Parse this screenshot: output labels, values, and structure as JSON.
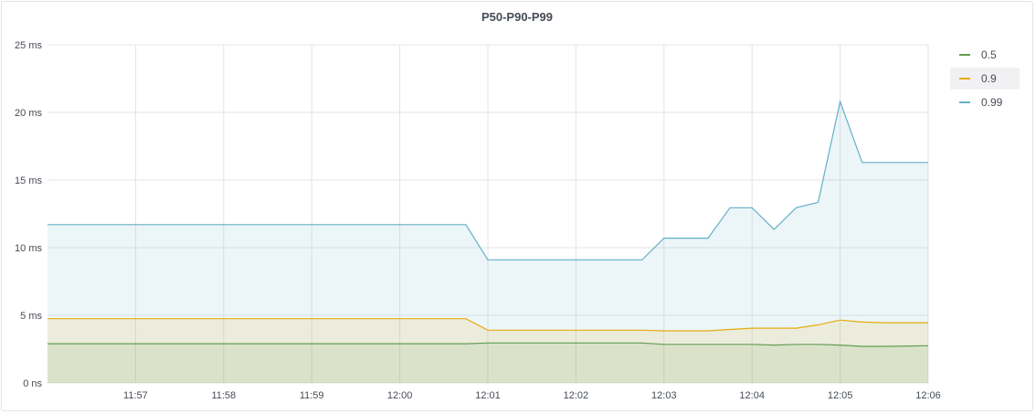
{
  "panel": {
    "title": "P50-P90-P99"
  },
  "colors": {
    "p50": "#629e51",
    "p90": "#e5ac0e",
    "p99": "#64b0c8",
    "grid": "#e4e4e4",
    "text": "#464c54"
  },
  "chart_data": {
    "type": "line",
    "title": "P50-P90-P99",
    "x_tick_labels": [
      "11:57",
      "11:58",
      "11:59",
      "12:00",
      "12:01",
      "12:02",
      "12:03",
      "12:04",
      "12:05",
      "12:06"
    ],
    "x_range_minutes": [
      -4.0,
      6.0
    ],
    "x_ticks_minutes": [
      -3,
      -2,
      -1,
      0,
      1,
      2,
      3,
      4,
      5,
      6
    ],
    "y_tick_labels": [
      "0 ns",
      "5 ms",
      "10 ms",
      "15 ms",
      "20 ms",
      "25 ms"
    ],
    "y_ticks": [
      0,
      5,
      10,
      15,
      20,
      25
    ],
    "ylim": [
      0,
      25
    ],
    "y_unit": "ms",
    "grid": true,
    "legend_position": "right",
    "fill": true,
    "series": [
      {
        "name": "0.5",
        "color_key": "p50",
        "points": [
          [
            -4.0,
            2.9
          ],
          [
            0.75,
            2.9
          ],
          [
            1.0,
            2.95
          ],
          [
            2.0,
            2.95
          ],
          [
            2.75,
            2.95
          ],
          [
            3.0,
            2.85
          ],
          [
            3.5,
            2.85
          ],
          [
            3.75,
            2.85
          ],
          [
            4.0,
            2.85
          ],
          [
            4.25,
            2.8
          ],
          [
            4.5,
            2.85
          ],
          [
            4.75,
            2.85
          ],
          [
            5.0,
            2.8
          ],
          [
            5.25,
            2.7
          ],
          [
            5.5,
            2.7
          ],
          [
            6.0,
            2.75
          ]
        ]
      },
      {
        "name": "0.9",
        "color_key": "p90",
        "points": [
          [
            -4.0,
            4.75
          ],
          [
            0.75,
            4.75
          ],
          [
            1.0,
            3.9
          ],
          [
            2.0,
            3.9
          ],
          [
            2.75,
            3.9
          ],
          [
            3.0,
            3.85
          ],
          [
            3.5,
            3.85
          ],
          [
            3.75,
            3.95
          ],
          [
            4.0,
            4.05
          ],
          [
            4.25,
            4.05
          ],
          [
            4.5,
            4.05
          ],
          [
            4.75,
            4.3
          ],
          [
            5.0,
            4.65
          ],
          [
            5.25,
            4.5
          ],
          [
            5.5,
            4.45
          ],
          [
            6.0,
            4.45
          ]
        ]
      },
      {
        "name": "0.99",
        "color_key": "p99",
        "points": [
          [
            -4.0,
            11.7
          ],
          [
            0.75,
            11.7
          ],
          [
            1.0,
            9.1
          ],
          [
            2.0,
            9.1
          ],
          [
            2.75,
            9.1
          ],
          [
            3.0,
            10.7
          ],
          [
            3.5,
            10.7
          ],
          [
            3.75,
            12.95
          ],
          [
            4.0,
            12.95
          ],
          [
            4.25,
            11.35
          ],
          [
            4.5,
            12.95
          ],
          [
            4.75,
            13.35
          ],
          [
            5.0,
            20.8
          ],
          [
            5.25,
            16.3
          ],
          [
            5.5,
            16.3
          ],
          [
            6.0,
            16.3
          ]
        ]
      }
    ]
  },
  "legend": {
    "hovered_index": 1,
    "items": [
      {
        "label": "0.5",
        "color_key": "p50"
      },
      {
        "label": "0.9",
        "color_key": "p90"
      },
      {
        "label": "0.99",
        "color_key": "p99"
      }
    ]
  }
}
